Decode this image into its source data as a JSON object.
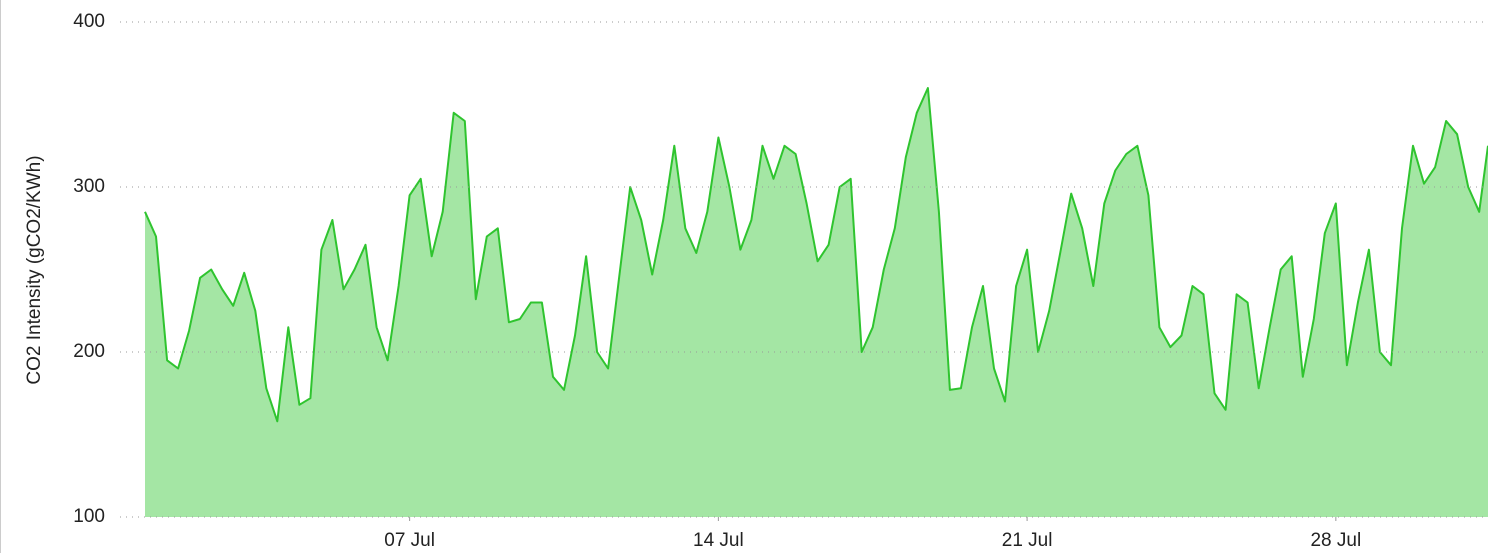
{
  "chart_data": {
    "type": "area",
    "y_label": "CO2 Intensity (gCO2/KWh)",
    "x": [
      1,
      1.25,
      1.5,
      1.75,
      2,
      2.25,
      2.5,
      2.75,
      3,
      3.25,
      3.5,
      3.75,
      4,
      4.25,
      4.5,
      4.75,
      5,
      5.25,
      5.5,
      5.75,
      6,
      6.25,
      6.5,
      6.75,
      7,
      7.25,
      7.5,
      7.75,
      8,
      8.25,
      8.5,
      8.75,
      9,
      9.25,
      9.5,
      9.75,
      10,
      10.25,
      10.5,
      10.75,
      11,
      11.25,
      11.5,
      11.75,
      12,
      12.25,
      12.5,
      12.75,
      13,
      13.25,
      13.5,
      13.75,
      14,
      14.25,
      14.5,
      14.75,
      15,
      15.25,
      15.5,
      15.75,
      16,
      16.25,
      16.5,
      16.75,
      17,
      17.25,
      17.5,
      17.75,
      18,
      18.25,
      18.5,
      18.75,
      19,
      19.25,
      19.5,
      19.75,
      20,
      20.25,
      20.5,
      20.75,
      21,
      21.25,
      21.5,
      21.75,
      22,
      22.25,
      22.5,
      22.75,
      23,
      23.25,
      23.5,
      23.75,
      24,
      24.25,
      24.5,
      24.75,
      25,
      25.25,
      25.5,
      25.75,
      26,
      26.25,
      26.5,
      26.75,
      27,
      27.25,
      27.5,
      27.75,
      28,
      28.25,
      28.5,
      28.75,
      29,
      29.25,
      29.5,
      29.75,
      30,
      30.25,
      30.5,
      30.75,
      31,
      31.25,
      31.45
    ],
    "values": [
      285,
      270,
      195,
      190,
      213,
      245,
      250,
      238,
      228,
      248,
      225,
      178,
      158,
      215,
      168,
      172,
      262,
      280,
      238,
      250,
      265,
      215,
      195,
      240,
      295,
      305,
      258,
      285,
      345,
      340,
      232,
      270,
      275,
      218,
      220,
      230,
      230,
      185,
      177,
      210,
      258,
      200,
      190,
      245,
      300,
      280,
      247,
      280,
      325,
      275,
      260,
      285,
      330,
      300,
      262,
      280,
      325,
      305,
      325,
      320,
      290,
      255,
      265,
      300,
      305,
      200,
      215,
      250,
      275,
      318,
      345,
      360,
      285,
      177,
      178,
      215,
      240,
      190,
      170,
      240,
      262,
      200,
      225,
      260,
      296,
      275,
      240,
      290,
      310,
      320,
      325,
      295,
      215,
      203,
      210,
      240,
      235,
      175,
      165,
      235,
      230,
      178,
      215,
      250,
      258,
      185,
      220,
      272,
      290,
      192,
      230,
      262,
      200,
      192,
      275,
      325,
      302,
      312,
      340,
      332,
      300,
      285,
      325
    ],
    "line_color": "#2fc42f",
    "fill_color": "#a4e6a4",
    "xlim": [
      1,
      31.45
    ],
    "xticks": [
      {
        "value": 7,
        "label": "07 Jul"
      },
      {
        "value": 14,
        "label": "14 Jul"
      },
      {
        "value": 21,
        "label": "21 Jul"
      },
      {
        "value": 28,
        "label": "28 Jul"
      }
    ],
    "ylim": [
      100,
      400
    ],
    "yticks": [
      100,
      200,
      300,
      400
    ],
    "grid": true
  }
}
